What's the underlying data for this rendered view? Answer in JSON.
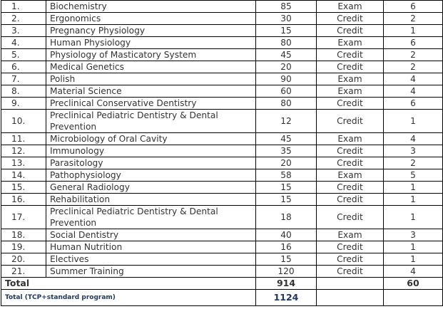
{
  "rows": [
    {
      "no": "1.",
      "subject": "Biochemistry",
      "hours": "85",
      "form": "Exam",
      "ects": "6"
    },
    {
      "no": "2.",
      "subject": "Ergonomics",
      "hours": "30",
      "form": "Credit",
      "ects": "2"
    },
    {
      "no": "3.",
      "subject": "Pregnancy Physiology",
      "hours": "15",
      "form": "Credit",
      "ects": "1"
    },
    {
      "no": "4.",
      "subject": "Human Physiology",
      "hours": "80",
      "form": "Exam",
      "ects": "6"
    },
    {
      "no": "5.",
      "subject": "Physiology of Masticatory System",
      "hours": "45",
      "form": "Credit",
      "ects": "2"
    },
    {
      "no": "6.",
      "subject": "Medical Genetics",
      "hours": "20",
      "form": "Credit",
      "ects": "2"
    },
    {
      "no": "7.",
      "subject": "Polish",
      "hours": "90",
      "form": "Exam",
      "ects": "4"
    },
    {
      "no": "8.",
      "subject": "Material Science",
      "hours": "60",
      "form": "Exam",
      "ects": "4"
    },
    {
      "no": "9.",
      "subject": "Preclinical Conservative Dentistry",
      "hours": "80",
      "form": "Credit",
      "ects": "6"
    },
    {
      "no": "10.",
      "subject": "Preclinical Pediatric Dentistry & Dental Prevention",
      "hours": "12",
      "form": "Credit",
      "ects": "1",
      "tall": true
    },
    {
      "no": "11.",
      "subject": "Microbiology of Oral Cavity",
      "hours": "45",
      "form": "Exam",
      "ects": "4"
    },
    {
      "no": "12.",
      "subject": "Immunology",
      "hours": "35",
      "form": "Credit",
      "ects": "3"
    },
    {
      "no": "13.",
      "subject": "Parasitology",
      "hours": "20",
      "form": "Credit",
      "ects": "2"
    },
    {
      "no": "14.",
      "subject": "Pathophysiology",
      "hours": "58",
      "form": "Exam",
      "ects": "5"
    },
    {
      "no": "15.",
      "subject": "General Radiology",
      "hours": "15",
      "form": "Credit",
      "ects": "1"
    },
    {
      "no": "16.",
      "subject": "Rehabilitation",
      "hours": "15",
      "form": "Credit",
      "ects": "1"
    },
    {
      "no": "17.",
      "subject": "Preclinical Pediatric Dentistry & Dental Prevention",
      "hours": "18",
      "form": "Credit",
      "ects": "1",
      "tall": true
    },
    {
      "no": "18.",
      "subject": "Social Dentistry",
      "hours": "40",
      "form": "Exam",
      "ects": "3"
    },
    {
      "no": "19.",
      "subject": "Human Nutrition",
      "hours": "16",
      "form": "Credit",
      "ects": "1"
    },
    {
      "no": "20.",
      "subject": "Electives",
      "hours": "15",
      "form": "Credit",
      "ects": "1"
    },
    {
      "no": "21.",
      "subject": "Summer Training",
      "hours": "120",
      "form": "Credit",
      "ects": "4"
    }
  ],
  "total": {
    "label": "Total",
    "hours": "914",
    "ects": "60"
  },
  "tcp": {
    "label": "Total (TCP+standard program)",
    "hours": "1124"
  },
  "colors": {
    "tcp_text": "#1f3864",
    "border": "#000000"
  }
}
